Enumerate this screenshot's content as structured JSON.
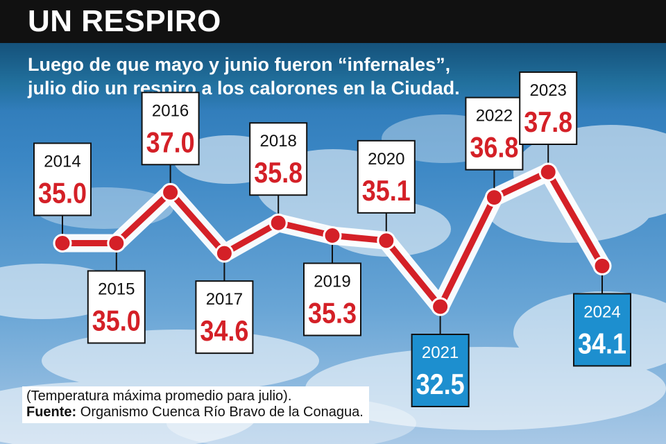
{
  "header": {
    "title": "UN RESPIRO",
    "subtitle_line1": "Luego de que mayo y junio fueron “infernales”,",
    "subtitle_line2": "julio dio un respiro a los calorones en la Ciudad."
  },
  "footer": {
    "note": "(Temperatura máxima promedio para julio).",
    "source_label": "Fuente:",
    "source_text": "Organismo Cuenca Río Bravo de la Conagua."
  },
  "colors": {
    "line": "#d42027",
    "value_text": "#d42027",
    "highlight_box": "#1d8fcf",
    "header_bg": "#111111"
  },
  "chart_data": {
    "type": "line",
    "title": "UN RESPIRO",
    "x": [
      "2014",
      "2015",
      "2016",
      "2017",
      "2018",
      "2019",
      "2020",
      "2021",
      "2022",
      "2023",
      "2024"
    ],
    "series": [
      {
        "values": [
          35.0,
          35.0,
          37.0,
          34.6,
          35.8,
          35.3,
          35.1,
          32.5,
          36.8,
          37.8,
          34.1
        ]
      }
    ],
    "value_labels": [
      "35.0",
      "35.0",
      "37.0",
      "34.6",
      "35.8",
      "35.3",
      "35.1",
      "32.5",
      "36.8",
      "37.8",
      "34.1"
    ],
    "highlighted": [
      "2021",
      "2024"
    ],
    "label_side": [
      "above",
      "below",
      "above",
      "below",
      "above",
      "below",
      "above",
      "below",
      "above",
      "above",
      "below"
    ],
    "grid": false,
    "legend": "none",
    "ylim": [
      32.5,
      37.8
    ]
  }
}
